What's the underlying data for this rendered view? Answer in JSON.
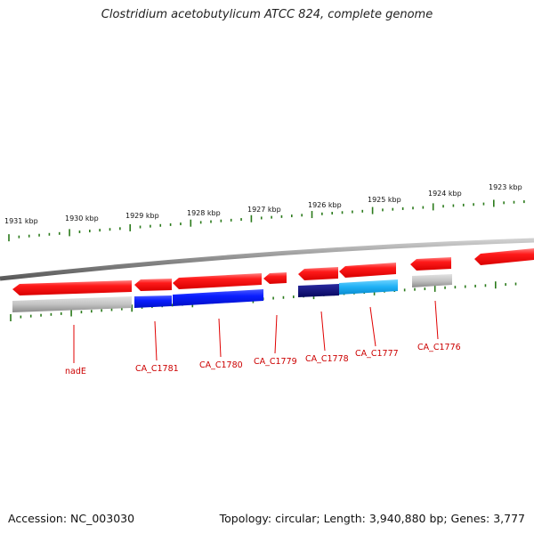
{
  "title": "Clostridium acetobutylicum ATCC 824, complete genome",
  "footer": {
    "accession": "Accession: NC_003030",
    "summary": "Topology: circular; Length: 3,940,880 bp; Genes: 3,777"
  },
  "colors": {
    "gene_red": "#ff1a1a",
    "cds_gray": "#b4b4b4",
    "blue": "#0a1eff",
    "navy": "#0a0a7a",
    "cyan": "#14aaf0",
    "tick_green": "#2a7a1a",
    "backbone": "#8c8c8c",
    "label_red": "#cc0000"
  },
  "kbp_labels": [
    "1931 kbp",
    "1930 kbp",
    "1929 kbp",
    "1928 kbp",
    "1927 kbp",
    "1926 kbp",
    "1925 kbp",
    "1924 kbp",
    "1923 kbp"
  ],
  "genes": [
    {
      "label": "nadE"
    },
    {
      "label": "CA_C1781"
    },
    {
      "label": "CA_C1780"
    },
    {
      "label": "CA_C1779"
    },
    {
      "label": "CA_C1778"
    },
    {
      "label": "CA_C1777"
    },
    {
      "label": "CA_C1776"
    }
  ]
}
